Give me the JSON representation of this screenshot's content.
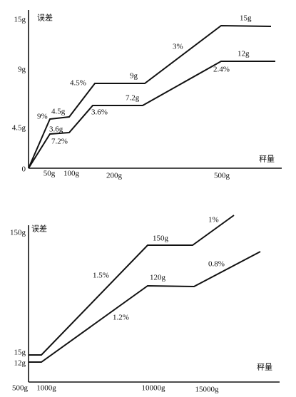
{
  "top": {
    "y_axis_title": "误差",
    "x_axis_title": "秤量",
    "y_labels": [
      "15g",
      "9g",
      "4.5g",
      "0"
    ],
    "x_labels": [
      "50g",
      "100g",
      "200g",
      "500g"
    ],
    "annotations": [
      "9%",
      "4.5g",
      "3.6g",
      "7.2%",
      "4.5%",
      "9g",
      "7.2g",
      "3.6%",
      "3%",
      "15g",
      "12g",
      "2.4%"
    ]
  },
  "bottom": {
    "y_axis_title": "误差",
    "x_axis_title": "秤量",
    "y_labels": [
      "150g",
      "15g",
      "12g"
    ],
    "x_labels": [
      "500g",
      "1000g",
      "10000g",
      "15000g"
    ],
    "annotations": [
      "150g",
      "1%",
      "1.5%",
      "120g",
      "0.8%",
      "1.2%"
    ]
  }
}
